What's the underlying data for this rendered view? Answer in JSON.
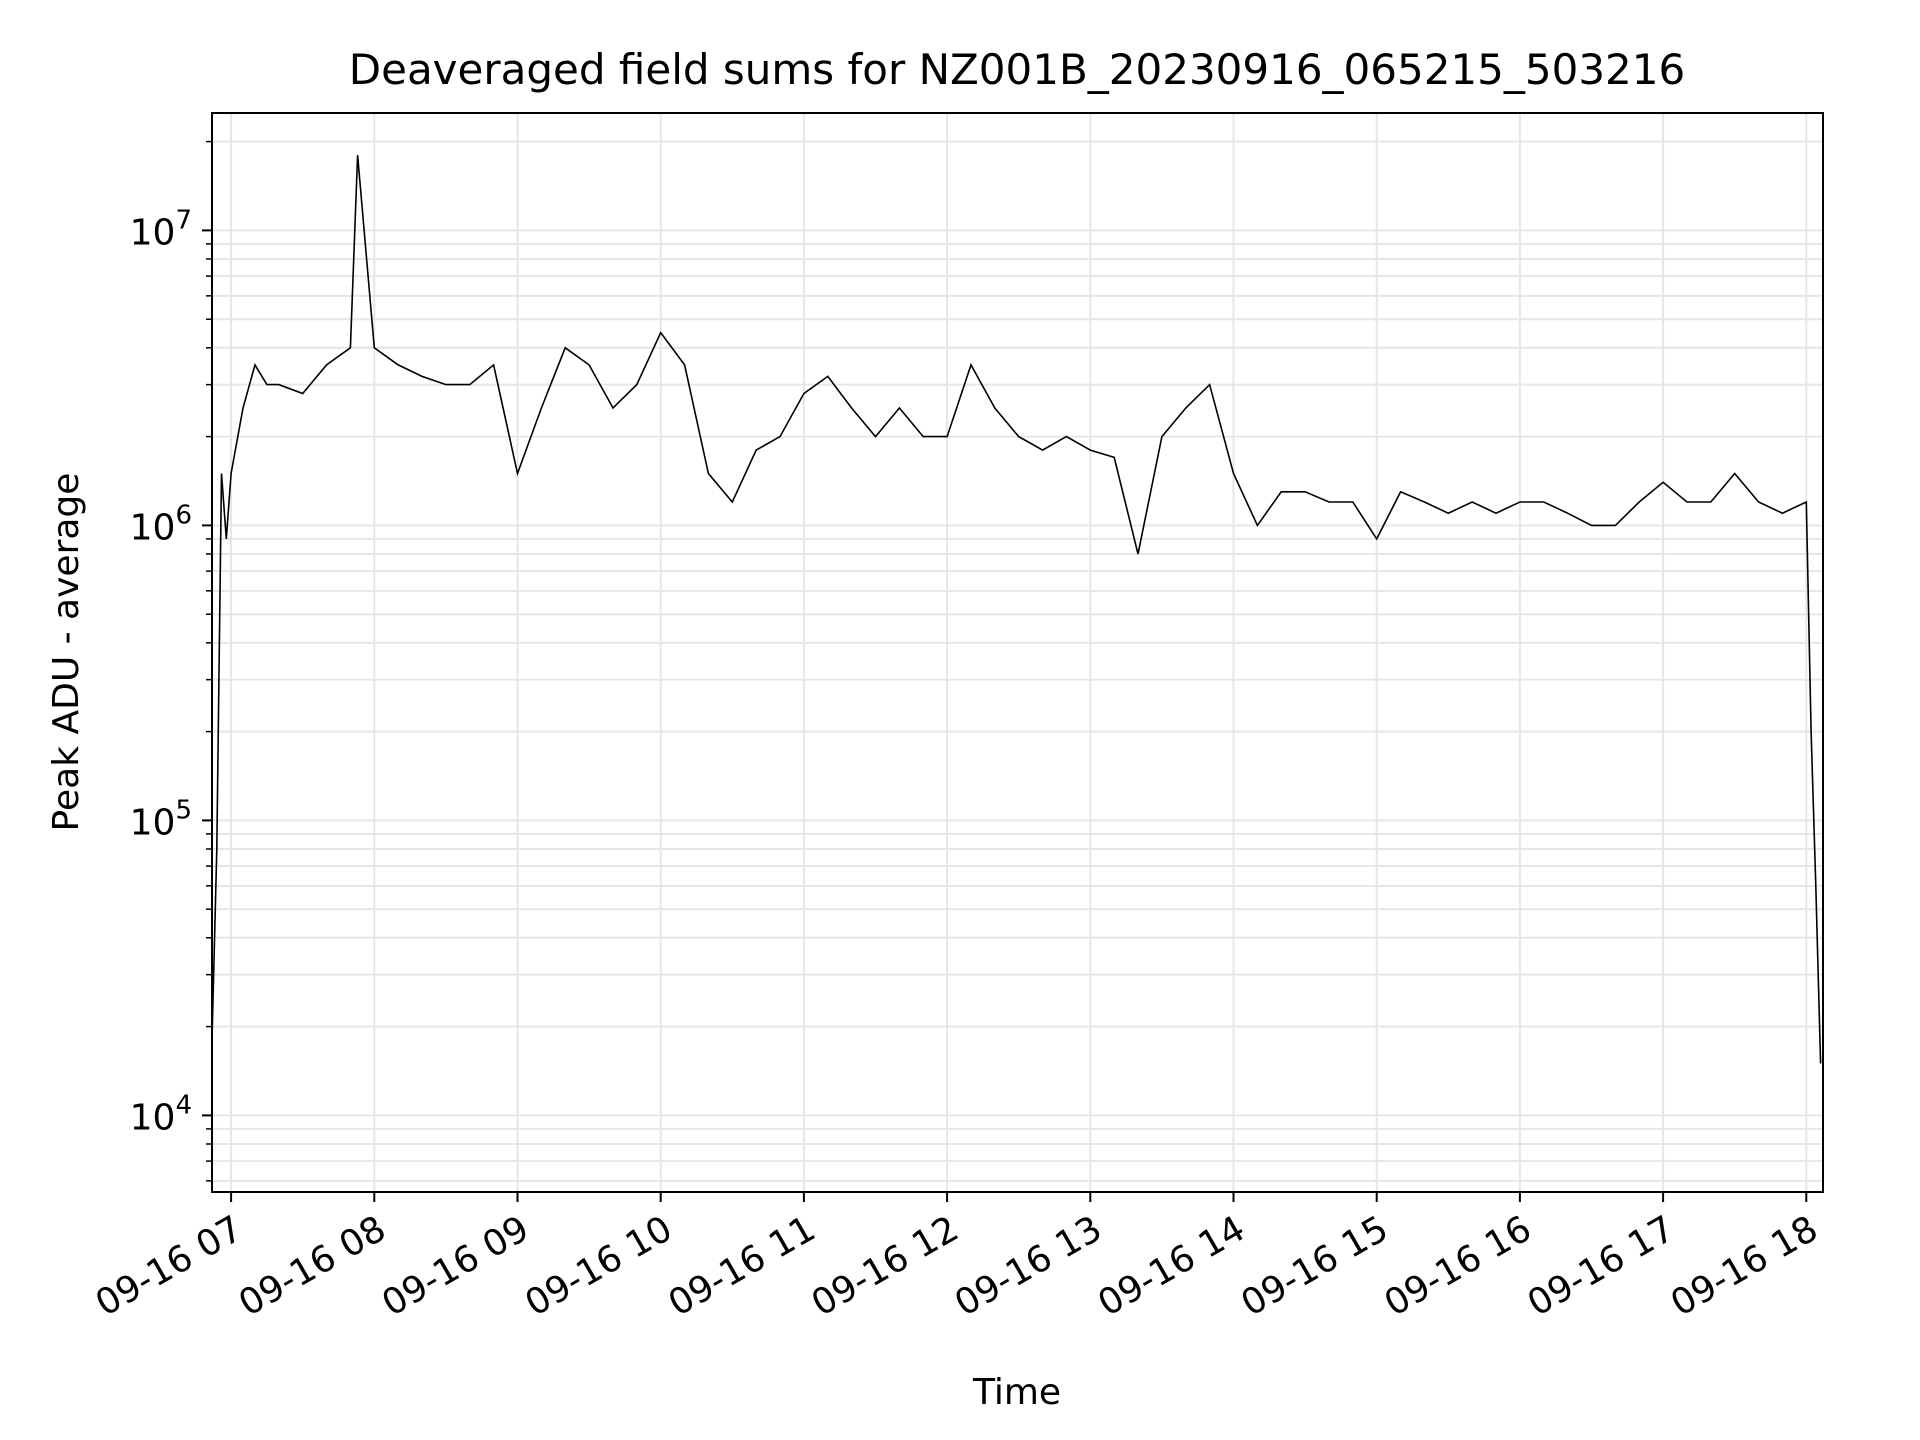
{
  "chart_data": {
    "type": "line",
    "title": "Deaveraged field sums for NZ001B_20230916_065215_503216",
    "xlabel": "Time",
    "ylabel": "Peak ADU - average",
    "y_scale": "log",
    "ylim": [
      5500,
      25000000
    ],
    "xlim": [
      "2023-09-16 06:52",
      "2023-09-16 18:07"
    ],
    "x_ticks": [
      "2023-09-16 07:00",
      "2023-09-16 08:00",
      "2023-09-16 09:00",
      "2023-09-16 10:00",
      "2023-09-16 11:00",
      "2023-09-16 12:00",
      "2023-09-16 13:00",
      "2023-09-16 14:00",
      "2023-09-16 15:00",
      "2023-09-16 16:00",
      "2023-09-16 17:00",
      "2023-09-16 18:00"
    ],
    "x_tick_labels": [
      "09-16 07",
      "09-16 08",
      "09-16 09",
      "09-16 10",
      "09-16 11",
      "09-16 12",
      "09-16 13",
      "09-16 14",
      "09-16 15",
      "09-16 16",
      "09-16 17",
      "09-16 18"
    ],
    "y_ticks": [
      10000,
      100000,
      1000000,
      10000000
    ],
    "y_tick_labels": [
      {
        "base": "10",
        "exp": "4"
      },
      {
        "base": "10",
        "exp": "5"
      },
      {
        "base": "10",
        "exp": "6"
      },
      {
        "base": "10",
        "exp": "7"
      }
    ],
    "grid": "major and minor",
    "line_color": "#000000",
    "grid_color": "#e6e6e6",
    "series": [
      {
        "x": [
          "2023-09-16 06:52",
          "2023-09-16 06:54",
          "2023-09-16 06:56",
          "2023-09-16 06:58",
          "2023-09-16 07:00",
          "2023-09-16 07:05",
          "2023-09-16 07:10",
          "2023-09-16 07:15",
          "2023-09-16 07:20",
          "2023-09-16 07:30",
          "2023-09-16 07:40",
          "2023-09-16 07:50",
          "2023-09-16 07:53",
          "2023-09-16 08:00",
          "2023-09-16 08:10",
          "2023-09-16 08:20",
          "2023-09-16 08:30",
          "2023-09-16 08:40",
          "2023-09-16 08:50",
          "2023-09-16 09:00",
          "2023-09-16 09:10",
          "2023-09-16 09:20",
          "2023-09-16 09:30",
          "2023-09-16 09:40",
          "2023-09-16 09:50",
          "2023-09-16 10:00",
          "2023-09-16 10:10",
          "2023-09-16 10:20",
          "2023-09-16 10:30",
          "2023-09-16 10:40",
          "2023-09-16 10:50",
          "2023-09-16 11:00",
          "2023-09-16 11:10",
          "2023-09-16 11:20",
          "2023-09-16 11:30",
          "2023-09-16 11:40",
          "2023-09-16 11:50",
          "2023-09-16 12:00",
          "2023-09-16 12:10",
          "2023-09-16 12:20",
          "2023-09-16 12:30",
          "2023-09-16 12:40",
          "2023-09-16 12:50",
          "2023-09-16 13:00",
          "2023-09-16 13:10",
          "2023-09-16 13:20",
          "2023-09-16 13:30",
          "2023-09-16 13:40",
          "2023-09-16 13:50",
          "2023-09-16 14:00",
          "2023-09-16 14:10",
          "2023-09-16 14:20",
          "2023-09-16 14:30",
          "2023-09-16 14:40",
          "2023-09-16 14:50",
          "2023-09-16 15:00",
          "2023-09-16 15:10",
          "2023-09-16 15:20",
          "2023-09-16 15:30",
          "2023-09-16 15:40",
          "2023-09-16 15:50",
          "2023-09-16 16:00",
          "2023-09-16 16:10",
          "2023-09-16 16:20",
          "2023-09-16 16:30",
          "2023-09-16 16:40",
          "2023-09-16 16:50",
          "2023-09-16 17:00",
          "2023-09-16 17:10",
          "2023-09-16 17:20",
          "2023-09-16 17:30",
          "2023-09-16 17:40",
          "2023-09-16 17:50",
          "2023-09-16 18:00",
          "2023-09-16 18:02",
          "2023-09-16 18:04",
          "2023-09-16 18:06"
        ],
        "y": [
          18000,
          80000,
          1500000,
          900000,
          1500000,
          2500000,
          3500000,
          3000000,
          3000000,
          2800000,
          3500000,
          4000000,
          18000000,
          4000000,
          3500000,
          3200000,
          3000000,
          3000000,
          3500000,
          1500000,
          2500000,
          4000000,
          3500000,
          2500000,
          3000000,
          4500000,
          3500000,
          1500000,
          1200000,
          1800000,
          2000000,
          2800000,
          3200000,
          2500000,
          2000000,
          2500000,
          2000000,
          2000000,
          3500000,
          2500000,
          2000000,
          1800000,
          2000000,
          1800000,
          1700000,
          800000,
          2000000,
          2500000,
          3000000,
          1500000,
          1000000,
          1300000,
          1300000,
          1200000,
          1200000,
          900000,
          1300000,
          1200000,
          1100000,
          1200000,
          1100000,
          1200000,
          1200000,
          1100000,
          1000000,
          1000000,
          1200000,
          1400000,
          1200000,
          1200000,
          1500000,
          1200000,
          1100000,
          1200000,
          200000,
          60000,
          15000
        ]
      }
    ]
  }
}
